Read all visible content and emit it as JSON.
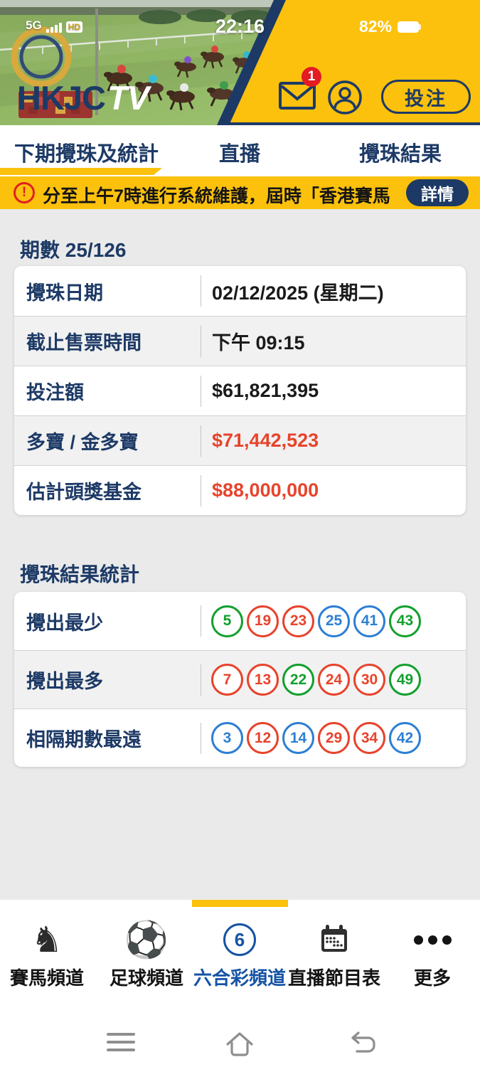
{
  "status_bar": {
    "network": "5G",
    "hd": "HD",
    "time": "22:16",
    "battery": "82%"
  },
  "header": {
    "logo_hkjc": "HKJC",
    "logo_tv": "TV",
    "mail_badge": "1",
    "bet_button": "投注"
  },
  "tabs": [
    {
      "label": "下期攪珠及統計",
      "active": true
    },
    {
      "label": "直播",
      "active": false
    },
    {
      "label": "攪珠結果",
      "active": false
    }
  ],
  "notice": {
    "text": "分至上午7時進行系統維護，屆時「香港賽馬",
    "details_button": "詳情"
  },
  "draw_info": {
    "title": "期數 25/126",
    "rows": [
      {
        "label": "攪珠日期",
        "value": "02/12/2025 (星期二)",
        "highlight": false
      },
      {
        "label": "截止售票時間",
        "value": "下午 09:15",
        "highlight": false
      },
      {
        "label": "投注額",
        "value": "$61,821,395",
        "highlight": false
      },
      {
        "label": "多寶 / 金多寶",
        "value": "$71,442,523",
        "highlight": true
      },
      {
        "label": "估計頭獎基金",
        "value": "$88,000,000",
        "highlight": true
      }
    ]
  },
  "stats": {
    "title": "攪珠結果統計",
    "rows": [
      {
        "label": "攪出最少",
        "balls": [
          {
            "n": "5",
            "c": "green"
          },
          {
            "n": "19",
            "c": "red"
          },
          {
            "n": "23",
            "c": "red"
          },
          {
            "n": "25",
            "c": "blue"
          },
          {
            "n": "41",
            "c": "blue"
          },
          {
            "n": "43",
            "c": "green"
          }
        ]
      },
      {
        "label": "攪出最多",
        "balls": [
          {
            "n": "7",
            "c": "red"
          },
          {
            "n": "13",
            "c": "red"
          },
          {
            "n": "22",
            "c": "green"
          },
          {
            "n": "24",
            "c": "red"
          },
          {
            "n": "30",
            "c": "red"
          },
          {
            "n": "49",
            "c": "green"
          }
        ]
      },
      {
        "label": "相隔期數最遠",
        "balls": [
          {
            "n": "3",
            "c": "blue"
          },
          {
            "n": "12",
            "c": "red"
          },
          {
            "n": "14",
            "c": "blue"
          },
          {
            "n": "29",
            "c": "red"
          },
          {
            "n": "34",
            "c": "red"
          },
          {
            "n": "42",
            "c": "blue"
          }
        ]
      }
    ]
  },
  "bottom_nav": [
    {
      "label": "賽馬頻道",
      "icon": "horse-icon",
      "active": false
    },
    {
      "label": "足球頻道",
      "icon": "soccer-icon",
      "active": false
    },
    {
      "label": "六合彩頻道",
      "icon": "mark-six-icon",
      "active": true
    },
    {
      "label": "直播節目表",
      "icon": "calendar-icon",
      "active": false
    },
    {
      "label": "更多",
      "icon": "more-icon",
      "active": false
    }
  ],
  "icons": {
    "horse_glyph": "♞",
    "soccer_glyph": "⚽",
    "six_number": "6"
  },
  "colors": {
    "accent_yellow": "#FBC10D",
    "navy": "#1d3a66",
    "highlight_red": "#e8432c",
    "active_blue": "#1553a4",
    "ball_red": "#E8432C",
    "ball_blue": "#2D7FD3",
    "ball_green": "#14A02E"
  }
}
